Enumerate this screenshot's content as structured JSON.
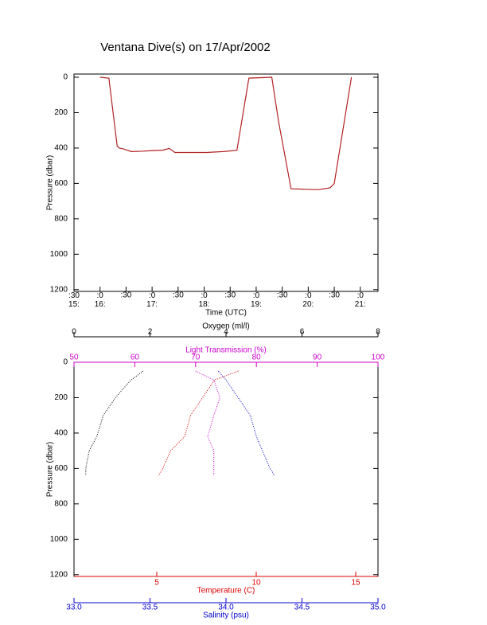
{
  "chart_data": [
    {
      "type": "line",
      "title": "Ventana Dive(s) on 17/Apr/2002",
      "xlabel": "Time (UTC)",
      "ylabel": "Pressure (dbar)",
      "xlim": [
        15.5,
        21.34
      ],
      "ylim": [
        -18,
        1210
      ],
      "y_inverted": true,
      "xticks": [
        {
          "value": 15.5,
          "label": ":30\n15:"
        },
        {
          "value": 16,
          "label": ":0\n16:"
        },
        {
          "value": 16.5,
          "label": ":30"
        },
        {
          "value": 17,
          "label": ":0\n17:"
        },
        {
          "value": 17.5,
          "label": ":30"
        },
        {
          "value": 18,
          "label": ":0\n18:"
        },
        {
          "value": 18.5,
          "label": ":30"
        },
        {
          "value": 19,
          "label": ":0\n19:"
        },
        {
          "value": 19.5,
          "label": ":30"
        },
        {
          "value": 20,
          "label": ":0\n20:"
        },
        {
          "value": 20.5,
          "label": ":30"
        },
        {
          "value": 21,
          "label": ":0\n21:"
        }
      ],
      "yticks": [
        0,
        200,
        400,
        600,
        800,
        1000,
        1200
      ],
      "series": [
        {
          "color": "#b22222",
          "x": [
            16.0,
            16.17,
            16.33,
            16.37,
            16.45,
            16.6,
            16.8,
            16.98,
            17.21,
            17.33,
            17.44,
            18.05,
            18.36,
            18.63,
            18.86,
            19.3,
            19.43,
            19.67,
            20.19,
            20.42,
            20.5,
            20.83
          ],
          "values": [
            0,
            5,
            390,
            400,
            405,
            420,
            418,
            415,
            412,
            402,
            425,
            425,
            420,
            413,
            5,
            0,
            250,
            630,
            635,
            625,
            600,
            0
          ]
        }
      ]
    },
    {
      "type": "profile",
      "ylabel": "Pressure (dbar)",
      "ylim": [
        0,
        1210
      ],
      "y_inverted": true,
      "yticks": [
        0,
        200,
        400,
        600,
        800,
        1000,
        1200
      ],
      "xaxes": [
        {
          "label": "Oxygen (ml/l)",
          "color": "#000000",
          "xlim": [
            0,
            8
          ],
          "xticks": [
            0,
            2,
            4,
            6,
            8
          ]
        },
        {
          "label": "Light Transmission (%)",
          "color": "#cc00cc",
          "xlim": [
            50,
            100
          ],
          "xticks": [
            50,
            60,
            70,
            80,
            90,
            100
          ]
        },
        {
          "label": "Temperature (C)",
          "color": "#dd0000",
          "xlim": [
            0.84,
            16.12
          ],
          "xticks": [
            5,
            10,
            15
          ]
        },
        {
          "label": "Salinity (psu)",
          "color": "#0000cc",
          "xlim": [
            33,
            35
          ],
          "xticks": [
            {
              "value": 33,
              "label": "33.0"
            },
            {
              "value": 33.5,
              "label": "33.5"
            },
            {
              "value": 34,
              "label": "34.0"
            },
            {
              "value": 34.5,
              "label": "34.5"
            },
            {
              "value": 35,
              "label": "35.0"
            }
          ]
        }
      ],
      "y": [
        50,
        100,
        200,
        300,
        420,
        500,
        600,
        640
      ],
      "series": [
        {
          "axis": 0,
          "color": "#000000",
          "values": [
            1.82,
            1.5,
            1.09,
            0.77,
            0.6,
            0.4,
            0.31,
            0.31
          ]
        },
        {
          "axis": 1,
          "color": "#cc00cc",
          "values": [
            70,
            73,
            74,
            73,
            72,
            73,
            73,
            73
          ]
        },
        {
          "axis": 2,
          "color": "#dd0000",
          "values": [
            9.1,
            7.9,
            7.3,
            6.7,
            6.4,
            5.7,
            5.3,
            5.1
          ]
        },
        {
          "axis": 3,
          "color": "#0000cc",
          "values": [
            33.95,
            34.0,
            34.08,
            34.16,
            34.2,
            34.24,
            34.29,
            34.32
          ]
        }
      ]
    }
  ]
}
